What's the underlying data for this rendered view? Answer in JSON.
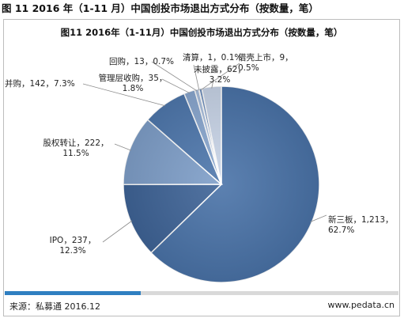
{
  "figure_title": "图 11 2016 年（1-11 月）中国创投市场退出方式分布（按数量，笔）",
  "chart_data": {
    "type": "pie",
    "title": "图11 2016年（1-11月）中国创投市场退出方式分布（按数量，笔）",
    "slices": [
      {
        "name": "新三板",
        "value": 1213,
        "percent": "62.7%",
        "color": "#4a73a8",
        "label_line1": "新三板，1,213，",
        "label_line2": "62.7%"
      },
      {
        "name": "IPO",
        "value": 237,
        "percent": "12.3%",
        "color": "#3f6497",
        "label_line1": "IPO，237，",
        "label_line2": "12.3%"
      },
      {
        "name": "股权转让",
        "value": 222,
        "percent": "11.5%",
        "color": "#7f9fc9",
        "label_line1": "股权转让，222，",
        "label_line2": "11.5%"
      },
      {
        "name": "并购",
        "value": 142,
        "percent": "7.3%",
        "color": "#4f78ad",
        "label_line1": "并购，142，7.3%",
        "label_line2": ""
      },
      {
        "name": "管理层收购",
        "value": 35,
        "percent": "1.8%",
        "color": "#8aa8d0",
        "label_line1": "管理层收购，35，",
        "label_line2": "1.8%"
      },
      {
        "name": "回购",
        "value": 13,
        "percent": "0.7%",
        "color": "#a9bfde",
        "label_line1": "回购，13，0.7%",
        "label_line2": ""
      },
      {
        "name": "清算",
        "value": 1,
        "percent": "0.1%",
        "color": "#5d82b5",
        "label_line1": "清算，1，0.1%",
        "label_line2": ""
      },
      {
        "name": "借壳上市",
        "value": 9,
        "percent": "0.5%",
        "color": "#6f90bf",
        "label_line1": "借壳上市，9，",
        "label_line2": "0.5%"
      },
      {
        "name": "未披露",
        "value": 62,
        "percent": "3.2%",
        "color": "#c9d5e8",
        "label_line1": "未披露，62，",
        "label_line2": "3.2%"
      }
    ]
  },
  "footer": {
    "source": "来源：私募通 2016.12",
    "website": "www.pedata.cn",
    "accent_color": "#2f7fc1"
  }
}
